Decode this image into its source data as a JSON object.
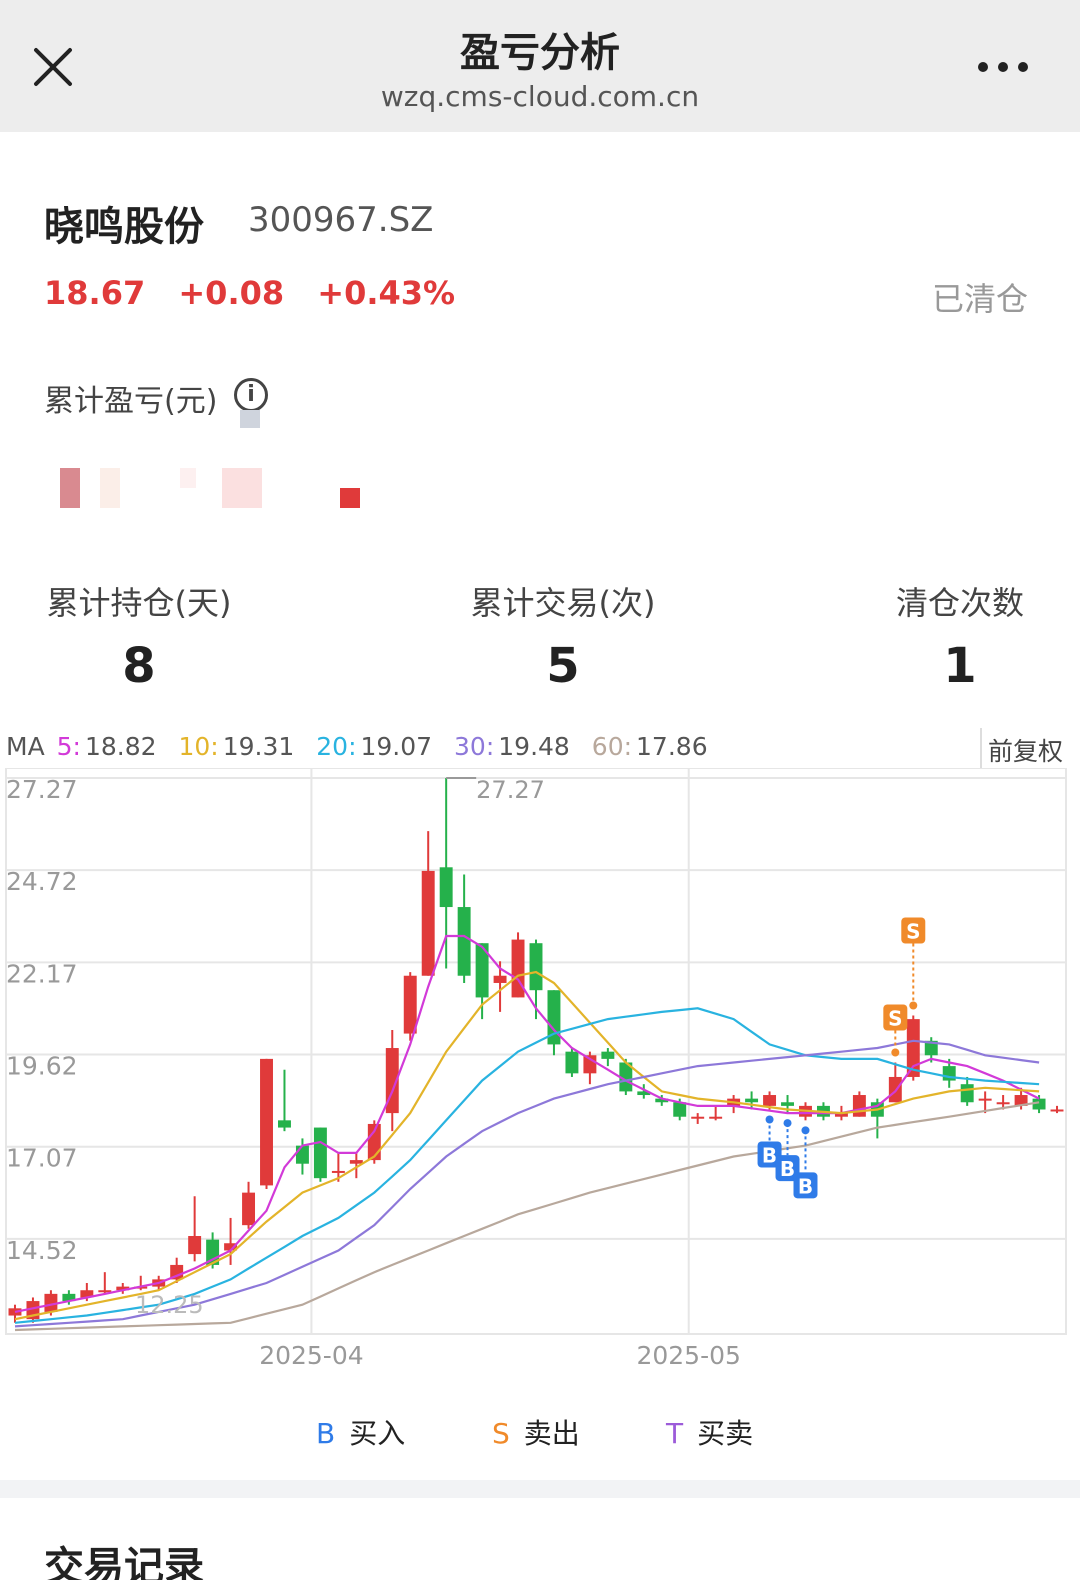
{
  "topbar": {
    "title": "盈亏分析",
    "url": "wzq.cms-cloud.com.cn"
  },
  "stock": {
    "name": "晓鸣股份",
    "code": "300967.SZ",
    "price": "18.67",
    "change": "+0.08",
    "change_pct": "+0.43%",
    "status": "已清仓"
  },
  "profit_loss": {
    "label": "累计盈亏(元)"
  },
  "stats": [
    {
      "label": "累计持仓(天)",
      "value": "8"
    },
    {
      "label": "累计交易(次)",
      "value": "5"
    },
    {
      "label": "清仓次数",
      "value": "1"
    }
  ],
  "ma": {
    "prefix": "MA",
    "items": [
      {
        "key": "5:",
        "value": "18.82",
        "color": "#d23ad8"
      },
      {
        "key": "10:",
        "value": "19.31",
        "color": "#e3b42a"
      },
      {
        "key": "20:",
        "value": "19.07",
        "color": "#29b3e0"
      },
      {
        "key": "30:",
        "value": "19.48",
        "color": "#8d78d9"
      },
      {
        "key": "60:",
        "value": "17.86",
        "color": "#b8a89c"
      }
    ]
  },
  "adjust_label": "前复权",
  "legend": [
    {
      "key": "B",
      "label": "买入",
      "color": "#2f7be8"
    },
    {
      "key": "S",
      "label": "卖出",
      "color": "#f08a2a"
    },
    {
      "key": "T",
      "label": "买卖",
      "color": "#9c5bd9"
    }
  ],
  "section2": {
    "title": "交易记录"
  },
  "chart_data": {
    "type": "candlestick",
    "y_ticks": [
      27.27,
      24.72,
      22.17,
      19.62,
      17.07,
      14.52
    ],
    "ylim": [
      12.0,
      27.27
    ],
    "x_ticks": [
      {
        "label": "2025-04",
        "index": 17
      },
      {
        "label": "2025-05",
        "index": 38
      }
    ],
    "max_label": "27.27",
    "min_label": "12.25",
    "up_color": "#e03a3a",
    "down_color": "#25b14b",
    "candles": [
      [
        12.4,
        12.6,
        12.7,
        12.2
      ],
      [
        12.3,
        12.8,
        12.9,
        12.2
      ],
      [
        12.5,
        13.0,
        13.1,
        12.4
      ],
      [
        13.0,
        12.8,
        13.1,
        12.7
      ],
      [
        12.9,
        13.1,
        13.3,
        12.8
      ],
      [
        13.1,
        13.1,
        13.6,
        13.0
      ],
      [
        13.1,
        13.2,
        13.3,
        13.0
      ],
      [
        13.2,
        13.2,
        13.5,
        13.1
      ],
      [
        13.2,
        13.4,
        13.5,
        13.1
      ],
      [
        13.4,
        13.8,
        14.0,
        13.3
      ],
      [
        14.1,
        14.6,
        15.7,
        13.9
      ],
      [
        14.5,
        13.8,
        14.7,
        13.7
      ],
      [
        14.2,
        14.4,
        15.1,
        13.8
      ],
      [
        14.9,
        15.8,
        16.1,
        14.8
      ],
      [
        16.0,
        19.5,
        19.5,
        15.9
      ],
      [
        17.8,
        17.6,
        19.2,
        17.5
      ],
      [
        17.1,
        16.6,
        17.3,
        16.3
      ],
      [
        17.6,
        16.2,
        17.6,
        16.1
      ],
      [
        16.4,
        16.4,
        16.9,
        16.1
      ],
      [
        16.6,
        16.7,
        16.9,
        16.2
      ],
      [
        16.7,
        17.7,
        17.8,
        16.6
      ],
      [
        18.0,
        19.8,
        20.3,
        17.5
      ],
      [
        20.2,
        21.8,
        21.9,
        20.0
      ],
      [
        21.8,
        24.7,
        25.8,
        21.8
      ],
      [
        24.8,
        23.7,
        27.27,
        22.0
      ],
      [
        23.7,
        21.8,
        24.6,
        21.6
      ],
      [
        22.7,
        21.2,
        22.7,
        20.6
      ],
      [
        21.6,
        21.8,
        22.2,
        20.8
      ],
      [
        21.2,
        22.8,
        23.0,
        21.2
      ],
      [
        22.7,
        21.4,
        22.8,
        20.6
      ],
      [
        21.4,
        19.9,
        21.4,
        19.6
      ],
      [
        19.7,
        19.1,
        19.8,
        19.0
      ],
      [
        19.1,
        19.6,
        19.7,
        18.8
      ],
      [
        19.7,
        19.5,
        19.8,
        19.3
      ],
      [
        19.4,
        18.6,
        19.5,
        18.5
      ],
      [
        18.6,
        18.5,
        18.8,
        18.4
      ],
      [
        18.4,
        18.3,
        18.5,
        18.2
      ],
      [
        18.3,
        17.9,
        18.4,
        17.8
      ],
      [
        17.9,
        17.9,
        18.0,
        17.7
      ],
      [
        17.9,
        17.9,
        18.2,
        17.8
      ],
      [
        18.2,
        18.4,
        18.5,
        18.0
      ],
      [
        18.4,
        18.3,
        18.6,
        18.1
      ],
      [
        18.2,
        18.5,
        18.6,
        18.1
      ],
      [
        18.3,
        18.2,
        18.5,
        18.0
      ],
      [
        17.9,
        18.2,
        18.3,
        17.8
      ],
      [
        18.2,
        17.9,
        18.3,
        17.8
      ],
      [
        17.9,
        18.0,
        18.2,
        17.8
      ],
      [
        17.9,
        18.5,
        18.6,
        17.9
      ],
      [
        18.3,
        17.9,
        18.4,
        17.3
      ],
      [
        18.3,
        19.0,
        19.4,
        18.3
      ],
      [
        19.0,
        20.6,
        20.7,
        18.9
      ],
      [
        20.0,
        19.6,
        20.1,
        19.4
      ],
      [
        19.3,
        18.9,
        19.5,
        18.7
      ],
      [
        18.8,
        18.3,
        19.0,
        18.2
      ],
      [
        18.4,
        18.4,
        18.6,
        18.0
      ],
      [
        18.3,
        18.3,
        18.5,
        18.1
      ],
      [
        18.2,
        18.5,
        18.7,
        18.1
      ],
      [
        18.4,
        18.1,
        18.5,
        18.0
      ],
      [
        18.1,
        18.1,
        18.2,
        18.0
      ]
    ],
    "ma_lines": [
      {
        "name": "MA5",
        "color": "#d23ad8",
        "anchors": [
          [
            0,
            12.5
          ],
          [
            4,
            12.9
          ],
          [
            8,
            13.3
          ],
          [
            10,
            13.7
          ],
          [
            12,
            14.2
          ],
          [
            14,
            15.3
          ],
          [
            15,
            16.5
          ],
          [
            16,
            17.1
          ],
          [
            17,
            17.2
          ],
          [
            18,
            16.9
          ],
          [
            19,
            16.9
          ],
          [
            20,
            17.5
          ],
          [
            21,
            18.6
          ],
          [
            22,
            19.9
          ],
          [
            23,
            21.5
          ],
          [
            24,
            22.9
          ],
          [
            25,
            22.9
          ],
          [
            26,
            22.6
          ],
          [
            27,
            22.0
          ],
          [
            28,
            21.7
          ],
          [
            29,
            20.9
          ],
          [
            30,
            20.3
          ],
          [
            31,
            19.8
          ],
          [
            32,
            19.5
          ],
          [
            34,
            18.9
          ],
          [
            36,
            18.4
          ],
          [
            38,
            18.2
          ],
          [
            40,
            18.2
          ],
          [
            43,
            18.0
          ],
          [
            46,
            18.0
          ],
          [
            48,
            18.2
          ],
          [
            49,
            18.6
          ],
          [
            50,
            19.3
          ],
          [
            51,
            19.5
          ],
          [
            53,
            19.3
          ],
          [
            55,
            18.9
          ],
          [
            57,
            18.4
          ]
        ]
      },
      {
        "name": "MA10",
        "color": "#e3b42a",
        "anchors": [
          [
            0,
            12.3
          ],
          [
            4,
            12.7
          ],
          [
            8,
            13.1
          ],
          [
            10,
            13.6
          ],
          [
            12,
            14.1
          ],
          [
            14,
            15.0
          ],
          [
            16,
            15.8
          ],
          [
            18,
            16.2
          ],
          [
            20,
            16.8
          ],
          [
            22,
            18.0
          ],
          [
            24,
            19.7
          ],
          [
            26,
            21.0
          ],
          [
            28,
            21.8
          ],
          [
            29,
            21.9
          ],
          [
            30,
            21.6
          ],
          [
            32,
            20.5
          ],
          [
            34,
            19.4
          ],
          [
            36,
            18.6
          ],
          [
            38,
            18.4
          ],
          [
            40,
            18.3
          ],
          [
            43,
            18.1
          ],
          [
            46,
            18.0
          ],
          [
            48,
            18.1
          ],
          [
            50,
            18.4
          ],
          [
            52,
            18.6
          ],
          [
            54,
            18.7
          ],
          [
            57,
            18.6
          ]
        ]
      },
      {
        "name": "MA20",
        "color": "#29b3e0",
        "anchors": [
          [
            0,
            12.2
          ],
          [
            4,
            12.4
          ],
          [
            8,
            12.7
          ],
          [
            10,
            13.0
          ],
          [
            12,
            13.4
          ],
          [
            14,
            14.0
          ],
          [
            16,
            14.6
          ],
          [
            18,
            15.1
          ],
          [
            20,
            15.8
          ],
          [
            22,
            16.7
          ],
          [
            24,
            17.8
          ],
          [
            26,
            18.9
          ],
          [
            28,
            19.7
          ],
          [
            30,
            20.2
          ],
          [
            33,
            20.6
          ],
          [
            36,
            20.8
          ],
          [
            38,
            20.9
          ],
          [
            40,
            20.6
          ],
          [
            42,
            19.9
          ],
          [
            44,
            19.6
          ],
          [
            46,
            19.5
          ],
          [
            48,
            19.5
          ],
          [
            50,
            19.2
          ],
          [
            52,
            19.0
          ],
          [
            54,
            18.9
          ],
          [
            57,
            18.8
          ]
        ]
      },
      {
        "name": "MA30",
        "color": "#8d78d9",
        "anchors": [
          [
            0,
            12.1
          ],
          [
            6,
            12.3
          ],
          [
            10,
            12.7
          ],
          [
            14,
            13.3
          ],
          [
            18,
            14.2
          ],
          [
            20,
            14.9
          ],
          [
            22,
            15.9
          ],
          [
            24,
            16.8
          ],
          [
            26,
            17.5
          ],
          [
            28,
            18.0
          ],
          [
            30,
            18.4
          ],
          [
            33,
            18.8
          ],
          [
            36,
            19.1
          ],
          [
            38,
            19.3
          ],
          [
            42,
            19.5
          ],
          [
            46,
            19.7
          ],
          [
            48,
            19.8
          ],
          [
            50,
            20.0
          ],
          [
            52,
            19.9
          ],
          [
            54,
            19.6
          ],
          [
            57,
            19.4
          ]
        ]
      },
      {
        "name": "MA60",
        "color": "#b8a89c",
        "anchors": [
          [
            0,
            12.0
          ],
          [
            12,
            12.2
          ],
          [
            16,
            12.7
          ],
          [
            20,
            13.6
          ],
          [
            24,
            14.4
          ],
          [
            28,
            15.2
          ],
          [
            32,
            15.8
          ],
          [
            36,
            16.3
          ],
          [
            40,
            16.8
          ],
          [
            44,
            17.1
          ],
          [
            48,
            17.6
          ],
          [
            52,
            17.9
          ],
          [
            57,
            18.3
          ]
        ]
      }
    ],
    "markers": [
      {
        "type": "B",
        "index": 42
      },
      {
        "type": "B",
        "index": 43
      },
      {
        "type": "B",
        "index": 44
      },
      {
        "type": "S",
        "index": 49
      },
      {
        "type": "S",
        "index": 50
      }
    ]
  }
}
